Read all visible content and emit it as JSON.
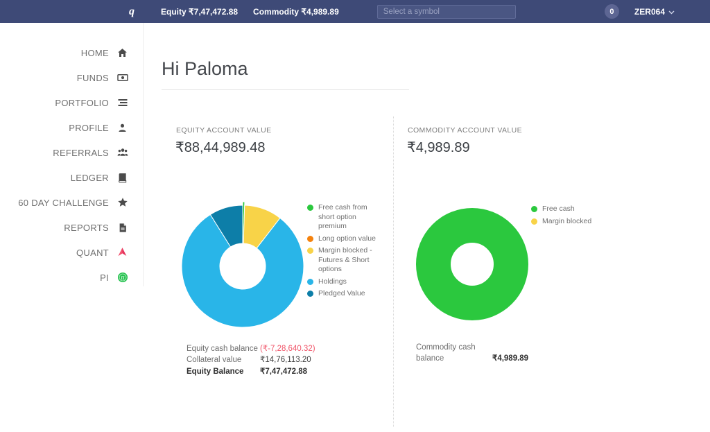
{
  "navbar": {
    "logo": "q",
    "equity_label": "Equity",
    "equity_value": "₹7,47,472.88",
    "commodity_label": "Commodity",
    "commodity_value": "₹4,989.89",
    "search_placeholder": "Select a symbol",
    "notification_count": "0",
    "account_id": "ZER064"
  },
  "sidebar": {
    "items": [
      {
        "id": "home",
        "label": "HOME",
        "icon": "house-icon"
      },
      {
        "id": "funds",
        "label": "FUNDS",
        "icon": "banknote-icon"
      },
      {
        "id": "portfolio",
        "label": "PORTFOLIO",
        "icon": "list-icon"
      },
      {
        "id": "profile",
        "label": "PROFILE",
        "icon": "person-icon"
      },
      {
        "id": "referrals",
        "label": "REFERRALS",
        "icon": "people-icon"
      },
      {
        "id": "ledger",
        "label": "LEDGER",
        "icon": "book-icon"
      },
      {
        "id": "challenge",
        "label": "60 DAY CHALLENGE",
        "icon": "star-icon"
      },
      {
        "id": "reports",
        "label": "REPORTS",
        "icon": "file-icon"
      },
      {
        "id": "quant",
        "label": "QUANT",
        "icon": "quant-logo-icon"
      },
      {
        "id": "pi",
        "label": "PI",
        "icon": "pi-logo-icon"
      }
    ]
  },
  "main": {
    "greeting": "Hi Paloma",
    "equity": {
      "account_label": "EQUITY ACCOUNT VALUE",
      "account_value": "₹88,44,989.48",
      "balance_rows": [
        {
          "label": "Equity cash balance",
          "value": "(₹-7,28,640.32)",
          "negative": true,
          "bold_label": false,
          "bold_value": false
        },
        {
          "label": "Collateral value",
          "value": "₹14,76,113.20",
          "negative": false,
          "bold_label": false,
          "bold_value": false
        },
        {
          "label": "Equity Balance",
          "value": "₹7,47,472.88",
          "negative": false,
          "bold_label": true,
          "bold_value": true
        }
      ]
    },
    "commodity": {
      "account_label": "COMMODITY ACCOUNT VALUE",
      "account_value": "₹4,989.89",
      "balance_rows": [
        {
          "label": "Commodity cash balance",
          "value": "₹4,989.89",
          "negative": false,
          "bold_label": false,
          "bold_value": true
        }
      ]
    }
  },
  "chart_data": [
    {
      "type": "pie",
      "donut": true,
      "name": "equity-allocation",
      "legend_position": "right",
      "slices": [
        {
          "label": "Free cash from short option premium",
          "percent": 0.5,
          "color": "#2bc83e"
        },
        {
          "label": "Long option value",
          "percent": 0,
          "color": "#f5820d"
        },
        {
          "label": "Margin blocked - Futures & Short options",
          "percent": 10.0,
          "color": "#f8d348"
        },
        {
          "label": "Holdings",
          "percent": 80.6,
          "color": "#29b5e8"
        },
        {
          "label": "Pledged Value",
          "percent": 8.9,
          "color": "#0d7ea8"
        }
      ]
    },
    {
      "type": "pie",
      "donut": true,
      "name": "commodity-allocation",
      "legend_position": "right",
      "slices": [
        {
          "label": "Free cash",
          "percent": 100,
          "color": "#2bc83e"
        },
        {
          "label": "Margin blocked",
          "percent": 0,
          "color": "#f8d348"
        }
      ]
    }
  ],
  "colors": {
    "navbar_bg": "#3e4a77",
    "negative_value": "#f0566a",
    "free_cash_green": "#2bc83e",
    "long_option_orange": "#f5820d",
    "margin_blocked_yellow": "#f8d348",
    "holdings_blue": "#29b5e8",
    "pledged_dark_blue": "#0d7ea8"
  }
}
